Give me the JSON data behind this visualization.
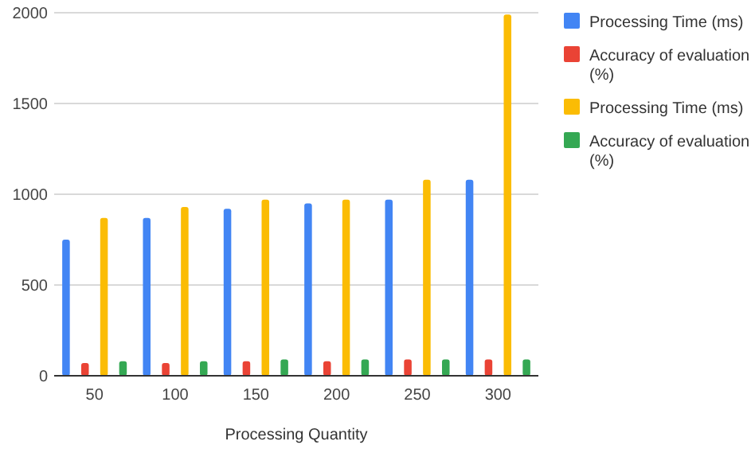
{
  "chart_data": {
    "type": "bar",
    "xlabel": "Processing Quantity",
    "categories": [
      "50",
      "100",
      "150",
      "200",
      "250",
      "300"
    ],
    "series": [
      {
        "name": "Processing Time (ms)",
        "color": "#4285f4",
        "values": [
          750,
          870,
          920,
          950,
          970,
          1080
        ]
      },
      {
        "name": "Accuracy of evaluation (%)",
        "color": "#ea4335",
        "values": [
          70,
          70,
          80,
          80,
          90,
          90
        ]
      },
      {
        "name": "Processing Time (ms)",
        "color": "#fbbc04",
        "values": [
          870,
          930,
          970,
          970,
          1080,
          1990
        ]
      },
      {
        "name": "Accuracy of evaluation (%)",
        "color": "#34a853",
        "values": [
          80,
          80,
          90,
          90,
          90,
          90
        ]
      }
    ],
    "ylim": [
      0,
      2000
    ],
    "yticks": [
      0,
      500,
      1000,
      1500,
      2000
    ],
    "grid": "y",
    "legend": "top right"
  }
}
